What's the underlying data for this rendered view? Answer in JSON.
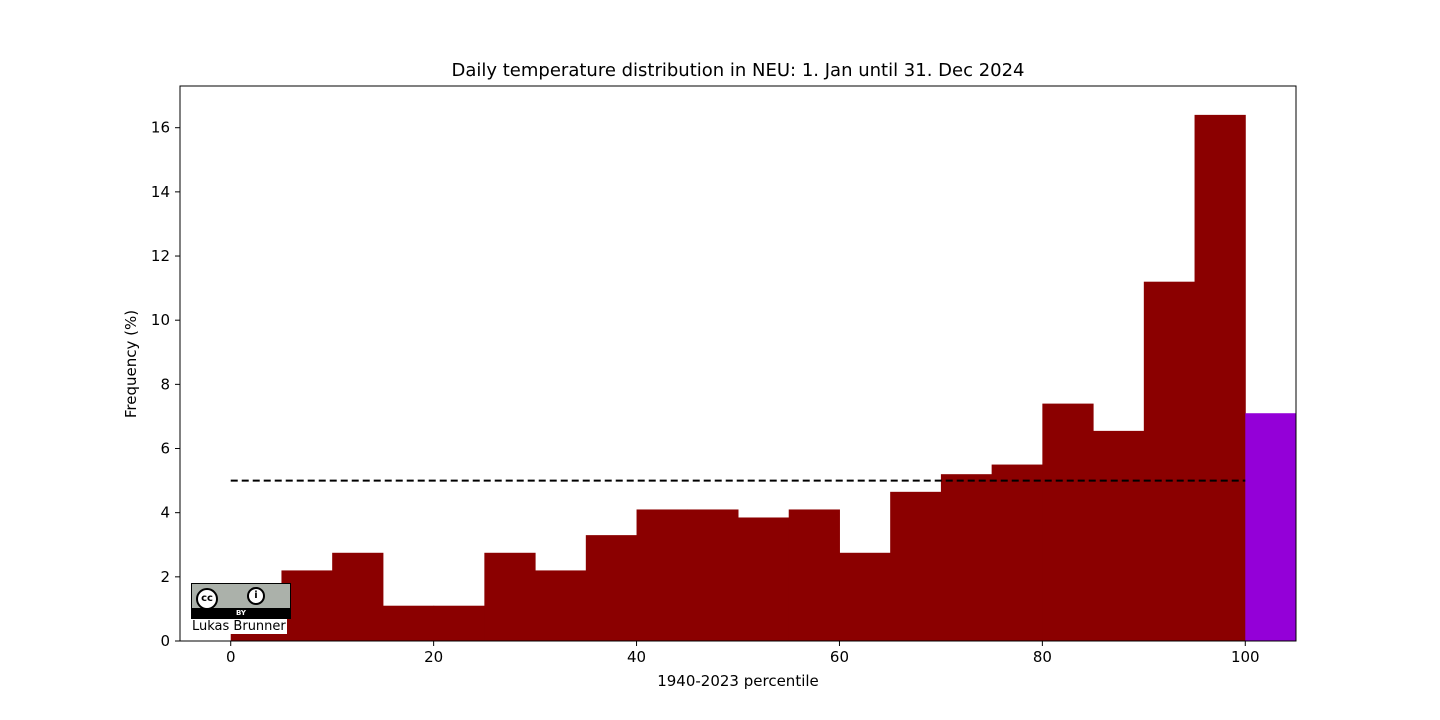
{
  "chart_data": {
    "type": "bar",
    "title": "Daily temperature distribution in NEU: 1. Jan until 31. Dec 2024",
    "xlabel": "1940-2023 percentile",
    "ylabel": "Frequency (%)",
    "xlim": [
      -5,
      105
    ],
    "ylim": [
      0,
      17.3
    ],
    "xticks": [
      0,
      20,
      40,
      60,
      80,
      100
    ],
    "yticks": [
      0,
      2,
      4,
      6,
      8,
      10,
      12,
      14,
      16
    ],
    "bin_width": 5,
    "bins": [
      {
        "x": 0,
        "value": 0.8
      },
      {
        "x": 5,
        "value": 2.2
      },
      {
        "x": 10,
        "value": 2.75
      },
      {
        "x": 15,
        "value": 1.1
      },
      {
        "x": 20,
        "value": 1.1
      },
      {
        "x": 25,
        "value": 2.75
      },
      {
        "x": 30,
        "value": 2.2
      },
      {
        "x": 35,
        "value": 3.3
      },
      {
        "x": 40,
        "value": 4.1
      },
      {
        "x": 45,
        "value": 4.1
      },
      {
        "x": 50,
        "value": 3.85
      },
      {
        "x": 55,
        "value": 4.1
      },
      {
        "x": 60,
        "value": 2.75
      },
      {
        "x": 65,
        "value": 4.65
      },
      {
        "x": 70,
        "value": 5.2
      },
      {
        "x": 75,
        "value": 5.5
      },
      {
        "x": 80,
        "value": 7.4
      },
      {
        "x": 85,
        "value": 6.55
      },
      {
        "x": 90,
        "value": 11.2
      },
      {
        "x": 95,
        "value": 16.4
      }
    ],
    "extreme_bin": {
      "x": 100,
      "value": 7.1
    },
    "reference_line": {
      "y": 5,
      "x_start": 0,
      "x_end": 100,
      "style": "dashed"
    },
    "colors": {
      "bars": "#8b0000",
      "extreme": "#9400d8",
      "reference": "#000000"
    },
    "grid": false
  },
  "credit": {
    "author": "Lukas Brunner",
    "license_cc": "cc",
    "license_by": "BY"
  }
}
